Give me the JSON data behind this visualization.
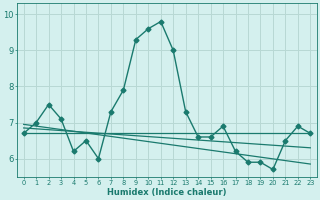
{
  "xlabel": "Humidex (Indice chaleur)",
  "background_color": "#d4f0ee",
  "line_color": "#1a7a6e",
  "grid_color": "#b8d8d4",
  "xlim": [
    -0.5,
    23.5
  ],
  "ylim": [
    5.5,
    10.3
  ],
  "yticks": [
    6,
    7,
    8,
    9,
    10
  ],
  "main_x": [
    0,
    1,
    2,
    3,
    4,
    5,
    6,
    7,
    8,
    9,
    10,
    11,
    12,
    13,
    14,
    15,
    16,
    17,
    18,
    19,
    20,
    21,
    22,
    23
  ],
  "main_y": [
    6.7,
    7.0,
    7.5,
    7.1,
    6.2,
    6.5,
    6.0,
    7.3,
    7.9,
    9.3,
    9.6,
    9.8,
    9.0,
    7.3,
    6.6,
    6.6,
    6.9,
    6.2,
    5.9,
    5.9,
    5.7,
    6.5,
    6.9,
    6.7
  ],
  "trend1_x": [
    0,
    23
  ],
  "trend1_y": [
    6.7,
    6.7
  ],
  "trend2_x": [
    0,
    23
  ],
  "trend2_y": [
    6.85,
    6.3
  ],
  "trend3_x": [
    0,
    23
  ],
  "trend3_y": [
    6.95,
    5.85
  ]
}
